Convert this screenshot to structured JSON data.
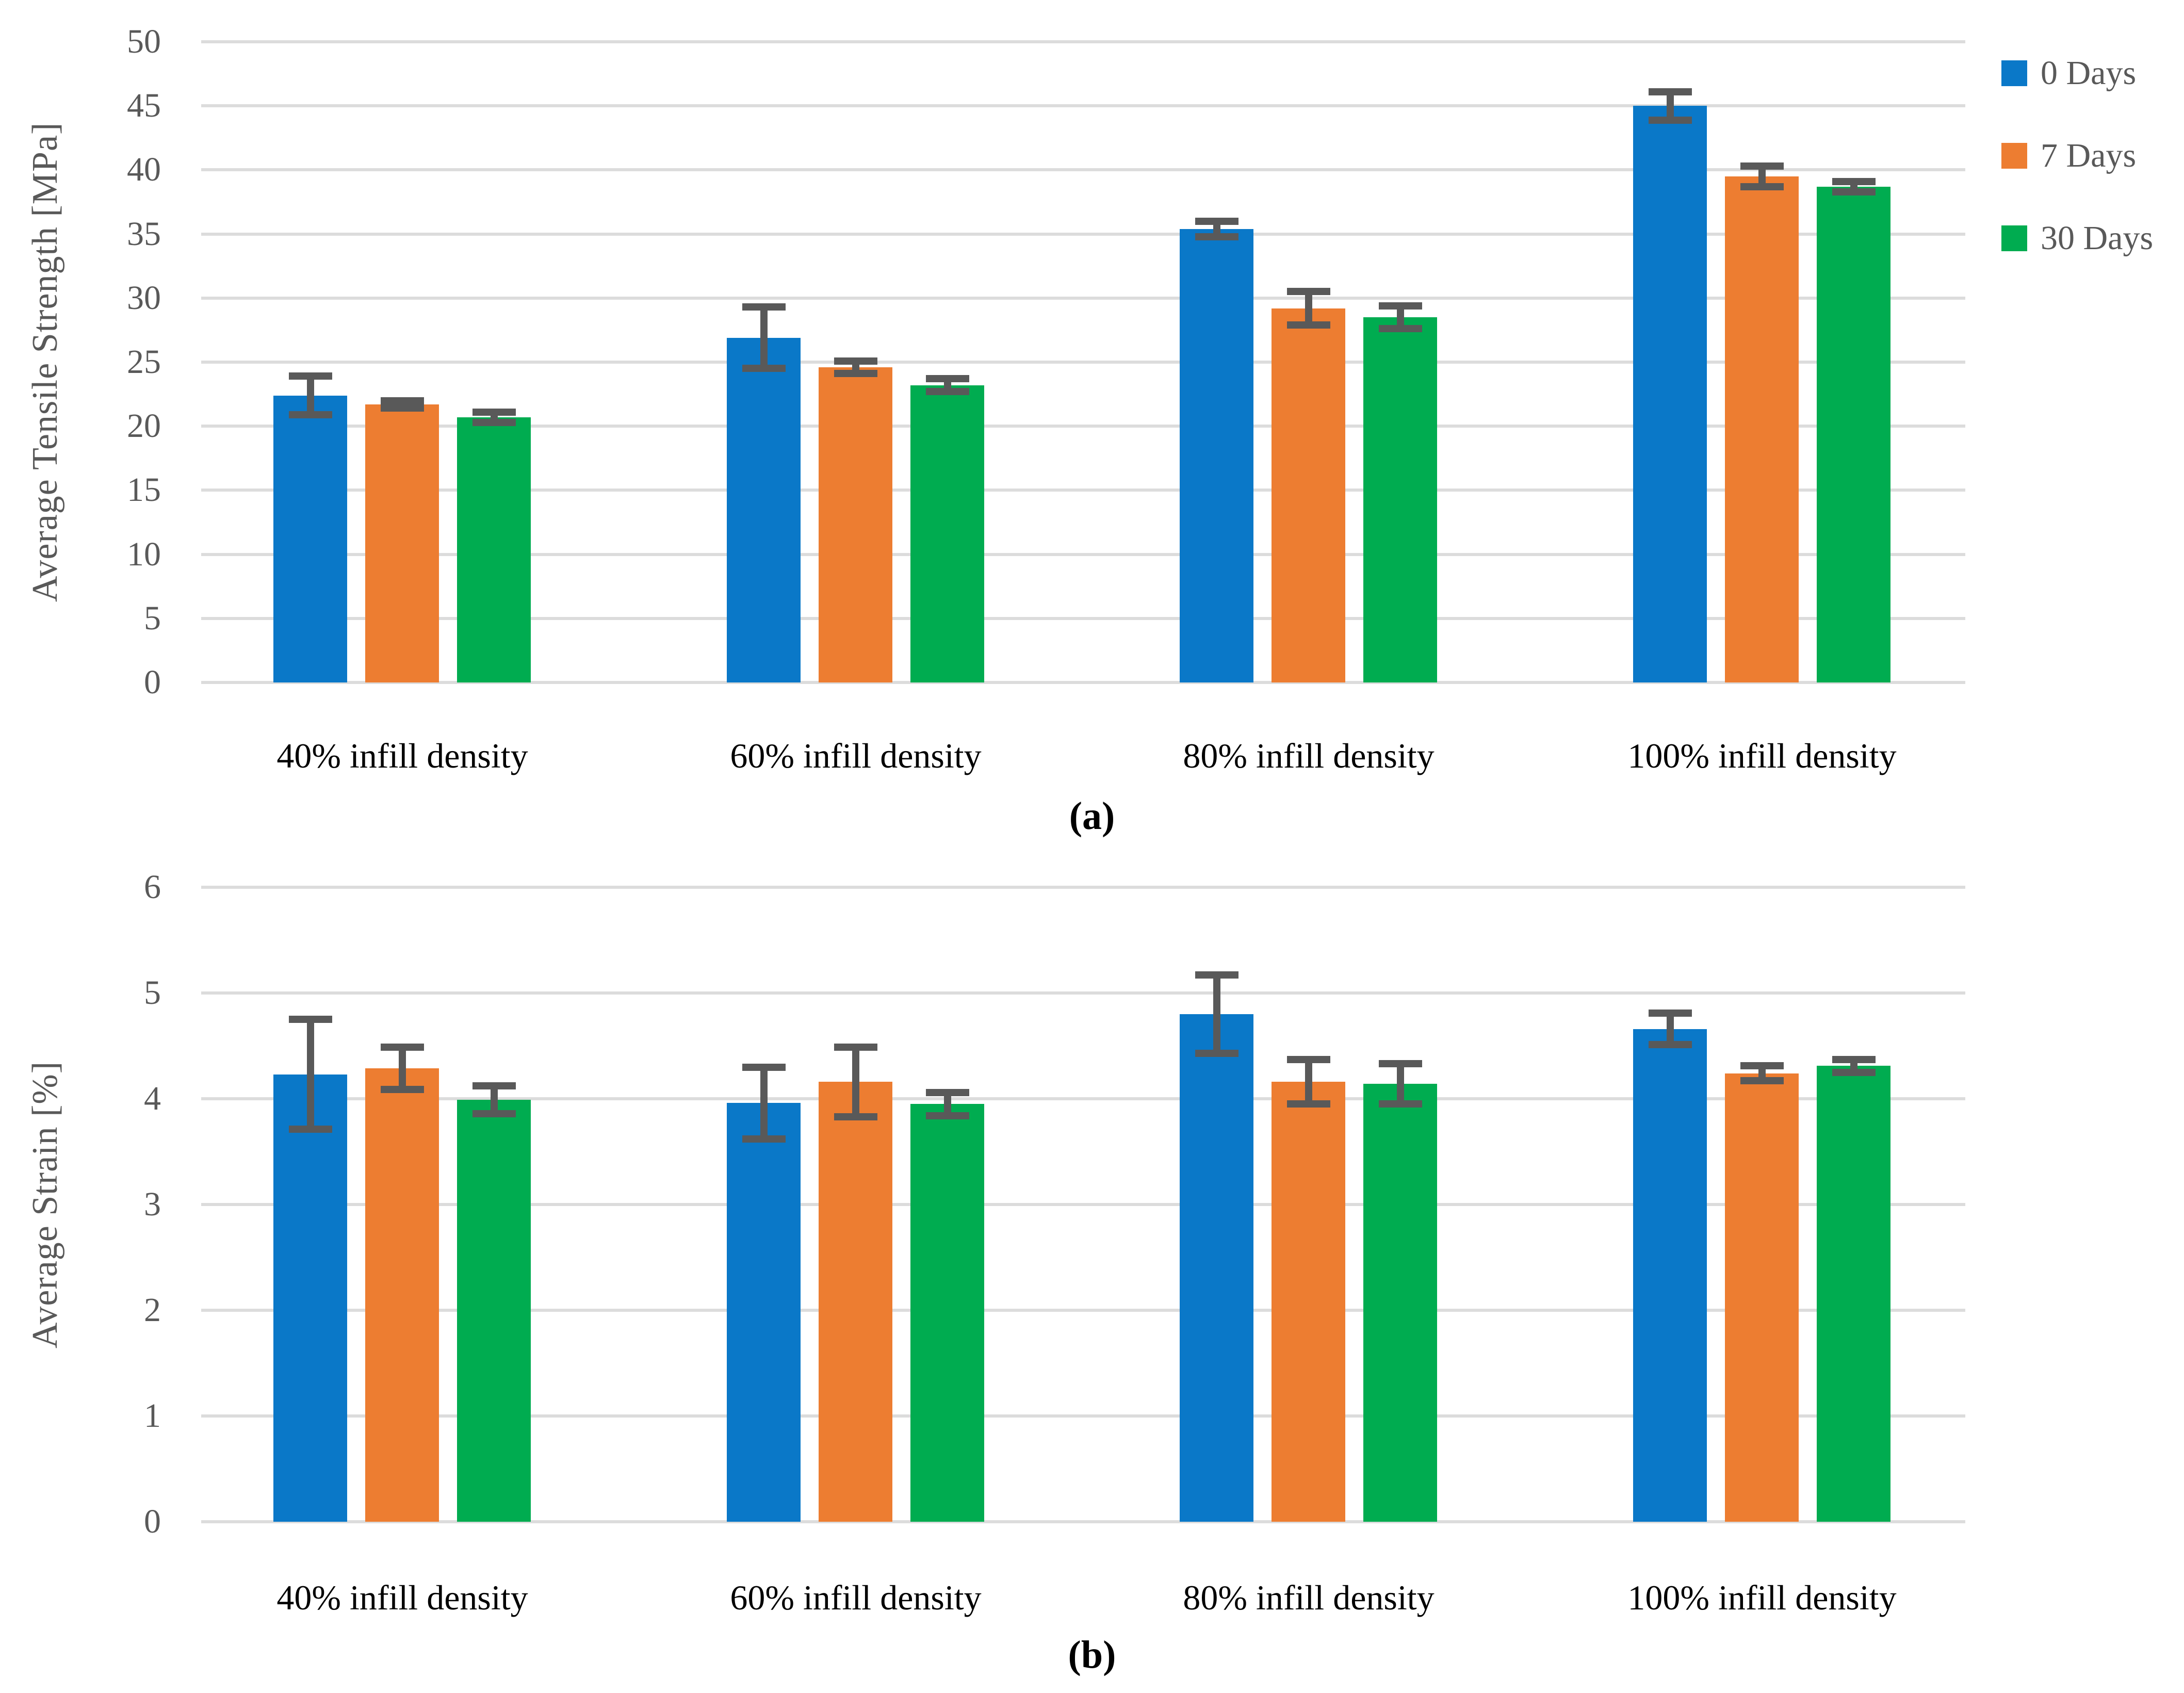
{
  "figure": {
    "background": "#FFFFFF"
  },
  "styles": {
    "grid_color": "#DCDCDC",
    "error_bar_color": "#595959",
    "tick_label_color": "#595959",
    "category_label_color": "#000000",
    "axis_label_color": "#595959",
    "legend_label_color": "#595959"
  },
  "legend": {
    "position": "top-right",
    "items": [
      {
        "label": "0 Days",
        "color": "#0A78C8"
      },
      {
        "label": "7 Days",
        "color": "#ED7D31"
      },
      {
        "label": "30 Days",
        "color": "#00AC50"
      }
    ]
  },
  "chart_data": [
    {
      "type": "bar",
      "panel": "a",
      "sublabel": "(a)",
      "ylabel": "Average Tensile Strength [MPa]",
      "xlabel": "",
      "ylim": [
        0,
        50
      ],
      "ytick_step": 5,
      "grid": true,
      "error_bars": true,
      "legend_position": "top-right",
      "categories": [
        "40% infill density",
        "60% infill density",
        "80% infill density",
        "100% infill density"
      ],
      "series": [
        {
          "name": "0 Days",
          "color": "#0A78C8",
          "values": [
            22.4,
            26.9,
            35.4,
            45.0
          ],
          "errors": [
            1.5,
            2.4,
            0.6,
            1.1
          ]
        },
        {
          "name": "7 Days",
          "color": "#ED7D31",
          "values": [
            21.7,
            24.6,
            29.2,
            39.5
          ],
          "errors": [
            0.3,
            0.5,
            1.3,
            0.8
          ]
        },
        {
          "name": "30 Days",
          "color": "#00AC50",
          "values": [
            20.7,
            23.2,
            28.5,
            38.7
          ],
          "errors": [
            0.4,
            0.5,
            0.9,
            0.4
          ]
        }
      ]
    },
    {
      "type": "bar",
      "panel": "b",
      "sublabel": "(b)",
      "ylabel": "Average Strain [%]",
      "xlabel": "",
      "ylim": [
        0,
        6
      ],
      "ytick_step": 1,
      "grid": true,
      "error_bars": true,
      "legend_position": "none",
      "categories": [
        "40% infill density",
        "60% infill density",
        "80% infill density",
        "100% infill density"
      ],
      "series": [
        {
          "name": "0 Days",
          "color": "#0A78C8",
          "values": [
            4.23,
            3.96,
            4.8,
            4.66
          ],
          "errors": [
            0.52,
            0.34,
            0.37,
            0.15
          ]
        },
        {
          "name": "7 Days",
          "color": "#ED7D31",
          "values": [
            4.29,
            4.16,
            4.16,
            4.24
          ],
          "errors": [
            0.2,
            0.33,
            0.21,
            0.07
          ]
        },
        {
          "name": "30 Days",
          "color": "#00AC50",
          "values": [
            3.99,
            3.95,
            4.14,
            4.31
          ],
          "errors": [
            0.13,
            0.11,
            0.19,
            0.06
          ]
        }
      ]
    }
  ]
}
